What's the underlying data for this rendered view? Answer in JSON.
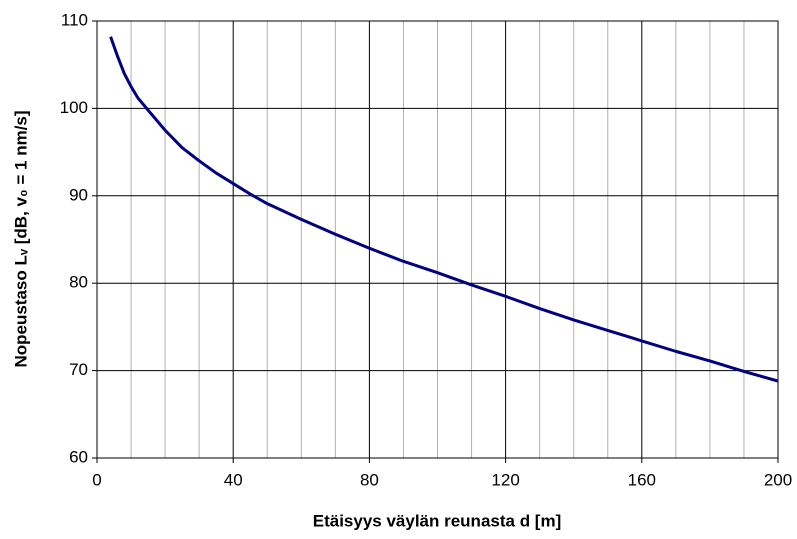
{
  "chart_data": {
    "type": "line",
    "xlabel": "Etäisyys väylän reunasta d [m]",
    "ylabel": "Nopeustaso Lᵥ [dB, v₀ = 1 nm/s]",
    "x": [
      4,
      6,
      8,
      10,
      12,
      15,
      20,
      25,
      30,
      35,
      40,
      45,
      50,
      60,
      70,
      80,
      90,
      100,
      110,
      120,
      130,
      140,
      150,
      160,
      170,
      180,
      190,
      200
    ],
    "series": [
      {
        "name": "Lv",
        "color": "#000080",
        "values": [
          108.2,
          106,
          104,
          102.5,
          101.2,
          99.8,
          97.5,
          95.5,
          94,
          92.6,
          91.4,
          90.2,
          89.1,
          87.3,
          85.6,
          84,
          82.5,
          81.2,
          79.8,
          78.5,
          77.1,
          75.8,
          74.6,
          73.4,
          72.2,
          71.1,
          69.9,
          68.8
        ]
      }
    ],
    "xlim": [
      0,
      200
    ],
    "xticks": [
      0,
      40,
      80,
      120,
      160,
      200
    ],
    "xminorticks": [
      10,
      20,
      30,
      50,
      60,
      70,
      90,
      100,
      110,
      130,
      140,
      150,
      170,
      180,
      190
    ],
    "ylim": [
      60,
      110
    ],
    "yticks": [
      60,
      70,
      80,
      90,
      100,
      110
    ],
    "grid": true
  }
}
